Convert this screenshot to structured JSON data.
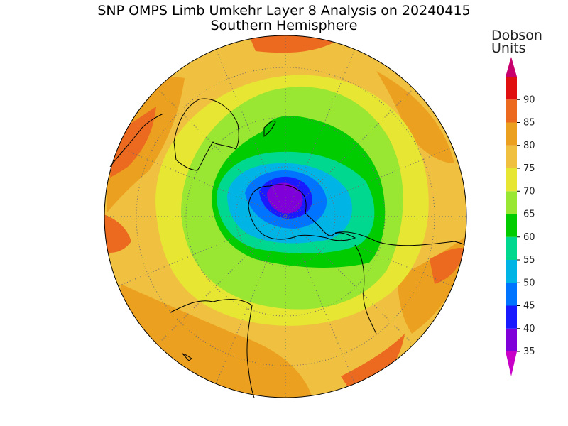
{
  "header": {
    "title": "SNP OMPS Limb Umkehr Layer 8 Analysis on 20240415",
    "subtitle": "Southern Hemisphere"
  },
  "colorbar": {
    "unit_line1": "Dobson",
    "unit_line2": "Units",
    "ticks": [
      "35",
      "40",
      "45",
      "50",
      "55",
      "60",
      "65",
      "70",
      "75",
      "80",
      "85",
      "90"
    ],
    "colors": [
      "#7f00d9",
      "#1a1aff",
      "#0073ff",
      "#00b4e6",
      "#00d890",
      "#00cc00",
      "#99e633",
      "#e6e633",
      "#f0c040",
      "#eca020",
      "#ec6a20",
      "#e01010"
    ],
    "under_color": "#c800c8",
    "over_color": "#c8006e"
  },
  "map": {
    "projection": "south polar stereographic",
    "hemisphere": "Southern",
    "boundary_color": "#000000",
    "graticule_style": "dotted"
  }
}
